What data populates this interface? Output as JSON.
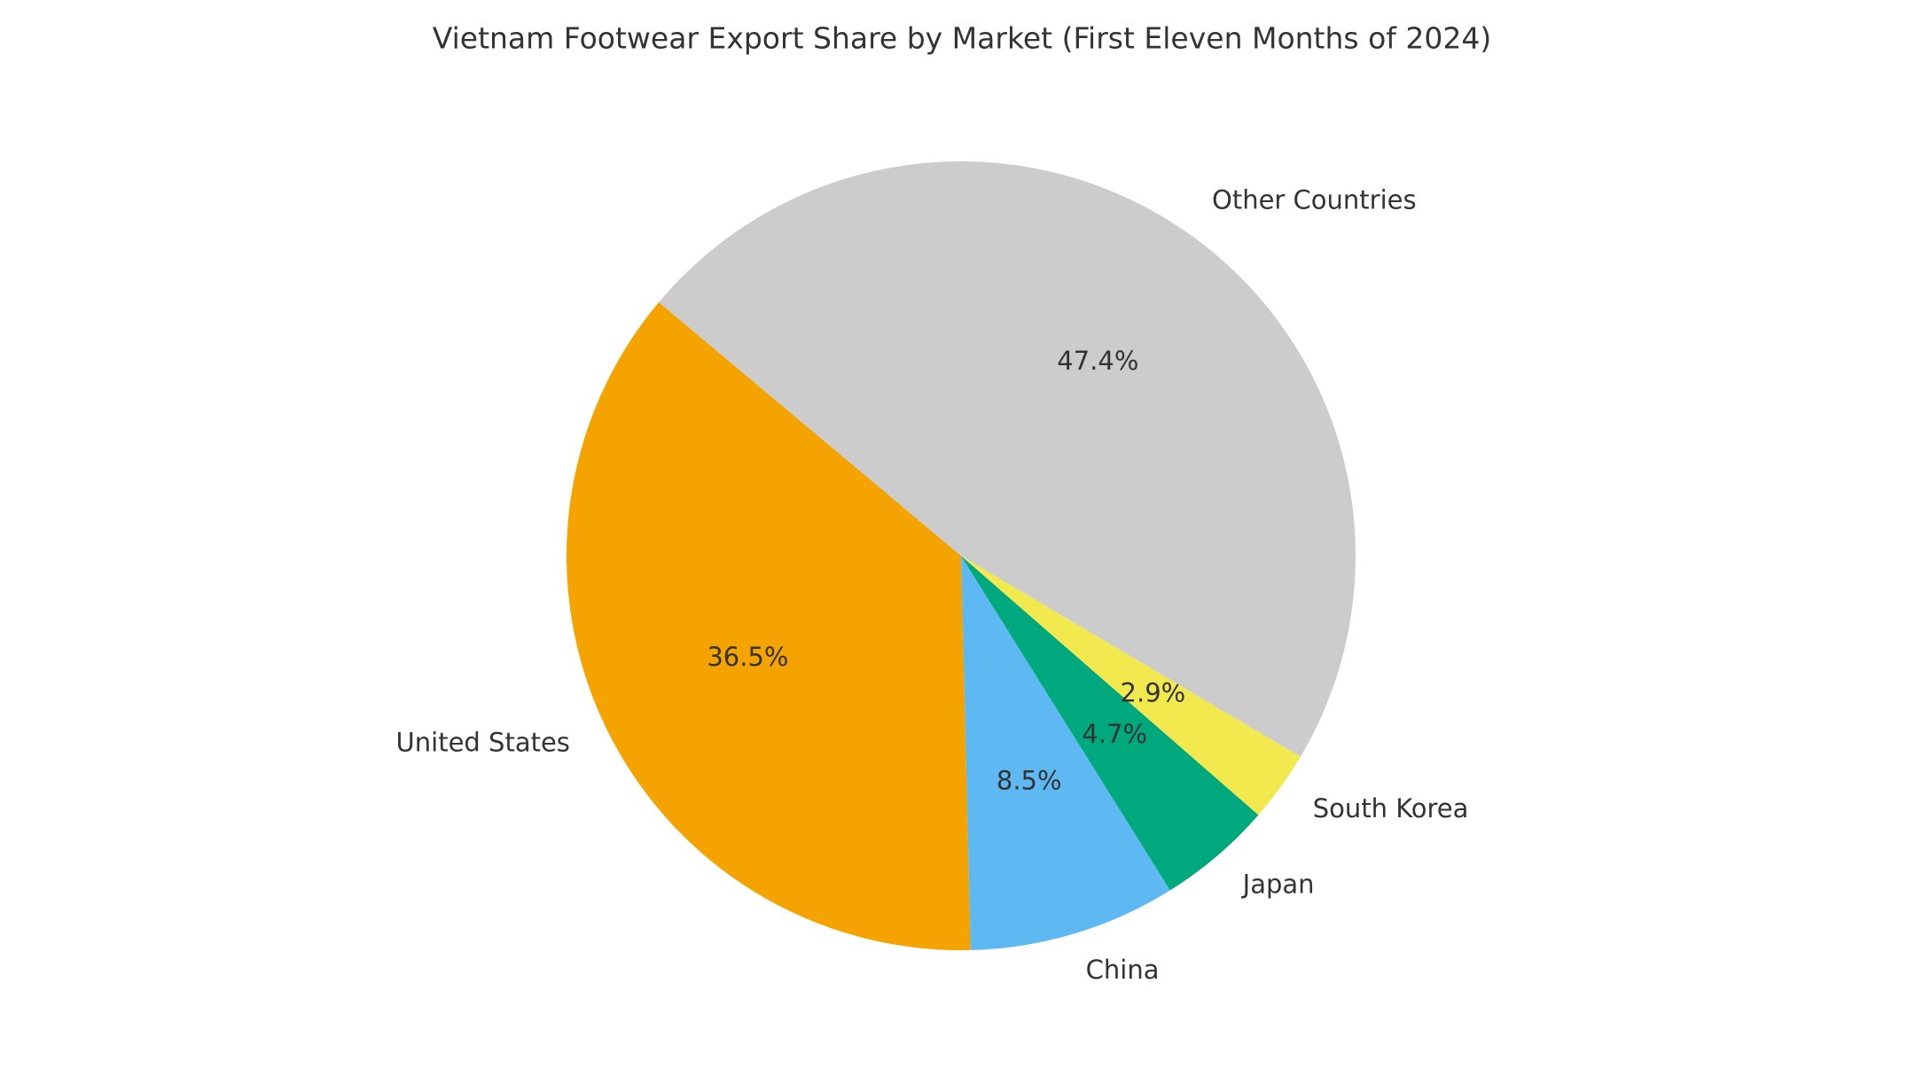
{
  "chart_data": {
    "type": "pie",
    "title": "Vietnam Footwear Export Share by Market (First Eleven Months of 2024)",
    "categories": [
      "United States",
      "China",
      "Japan",
      "South Korea",
      "Other Countries"
    ],
    "values": [
      36.5,
      8.5,
      4.7,
      2.9,
      47.4
    ],
    "value_labels": [
      "36.5%",
      "8.5%",
      "4.7%",
      "2.9%",
      "47.4%"
    ],
    "colors": [
      "#f4a300",
      "#5eb8f2",
      "#00a87e",
      "#f2e94e",
      "#cccccc"
    ],
    "start_angle": 140
  }
}
